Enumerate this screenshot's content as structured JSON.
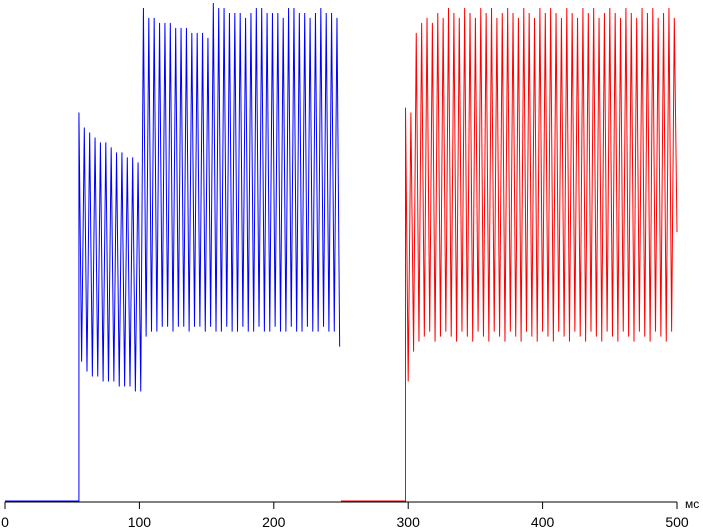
{
  "chart_data": {
    "type": "line",
    "xlabel": "мс",
    "xlim": [
      0,
      500
    ],
    "xticks": [
      0,
      100,
      200,
      300,
      400,
      500
    ],
    "ylim": [
      0,
      100
    ],
    "series": [
      {
        "color": "#0000ff",
        "x": [
          0,
          55,
          55,
          57,
          59,
          61,
          63,
          65,
          67,
          69,
          71,
          73,
          75,
          77,
          79,
          81,
          83,
          85,
          87,
          89,
          91,
          93,
          95,
          97,
          99,
          101,
          103,
          105,
          107,
          109,
          111,
          113,
          115,
          117,
          119,
          121,
          123,
          125,
          127,
          129,
          131,
          133,
          135,
          137,
          139,
          141,
          143,
          145,
          147,
          149,
          151,
          153,
          155,
          157,
          159,
          161,
          163,
          165,
          167,
          169,
          171,
          173,
          175,
          177,
          179,
          181,
          183,
          185,
          187,
          189,
          191,
          193,
          195,
          197,
          199,
          201,
          203,
          205,
          207,
          209,
          211,
          213,
          215,
          217,
          219,
          221,
          223,
          225,
          227,
          229,
          231,
          233,
          235,
          237,
          239,
          241,
          243,
          245,
          247,
          249
        ],
        "values": [
          0,
          0,
          78,
          28,
          75,
          26,
          74,
          25,
          73,
          25,
          72,
          24,
          72,
          24,
          71,
          24,
          70,
          23,
          70,
          23,
          69,
          23,
          69,
          22,
          68,
          22,
          99,
          33,
          97,
          34,
          97,
          34,
          96,
          35,
          96,
          35,
          96,
          34,
          95,
          35,
          95,
          35,
          95,
          34,
          94,
          35,
          94,
          35,
          94,
          34,
          93,
          35,
          100,
          34,
          99,
          34,
          99,
          35,
          98,
          34,
          98,
          34,
          98,
          35,
          97,
          34,
          98,
          34,
          99,
          35,
          99,
          34,
          98,
          34,
          98,
          35,
          98,
          34,
          97,
          34,
          99,
          35,
          99,
          34,
          98,
          34,
          98,
          35,
          97,
          34,
          98,
          34,
          99,
          35,
          98,
          34,
          98,
          34,
          97,
          31
        ]
      },
      {
        "color": "#ff0000",
        "x": [
          250,
          298,
          298,
          300,
          302,
          304,
          306,
          308,
          310,
          312,
          314,
          316,
          318,
          320,
          322,
          324,
          326,
          328,
          330,
          332,
          334,
          336,
          338,
          340,
          342,
          344,
          346,
          348,
          350,
          352,
          354,
          356,
          358,
          360,
          362,
          364,
          366,
          368,
          370,
          372,
          374,
          376,
          378,
          380,
          382,
          384,
          386,
          388,
          390,
          392,
          394,
          396,
          398,
          400,
          402,
          404,
          406,
          408,
          410,
          412,
          414,
          416,
          418,
          420,
          422,
          424,
          426,
          428,
          430,
          432,
          434,
          436,
          438,
          440,
          442,
          444,
          446,
          448,
          450,
          452,
          454,
          456,
          458,
          460,
          462,
          464,
          466,
          468,
          470,
          472,
          474,
          476,
          478,
          480,
          482,
          484,
          486,
          488,
          490,
          492,
          494,
          496,
          498,
          500
        ],
        "values": [
          0,
          0,
          79,
          24,
          78,
          30,
          94,
          32,
          96,
          33,
          97,
          34,
          96,
          32,
          98,
          33,
          97,
          34,
          99,
          33,
          98,
          32,
          97,
          34,
          99,
          33,
          98,
          32,
          97,
          34,
          99,
          33,
          98,
          32,
          99,
          34,
          97,
          33,
          98,
          32,
          99,
          34,
          98,
          33,
          97,
          32,
          99,
          34,
          98,
          33,
          97,
          32,
          99,
          34,
          98,
          33,
          99,
          32,
          98,
          34,
          97,
          33,
          99,
          32,
          98,
          34,
          97,
          33,
          99,
          32,
          98,
          34,
          99,
          33,
          97,
          32,
          98,
          34,
          99,
          33,
          98,
          32,
          97,
          34,
          99,
          33,
          98,
          32,
          97,
          34,
          99,
          33,
          98,
          32,
          99,
          34,
          97,
          33,
          98,
          32,
          99,
          34,
          97,
          54
        ]
      }
    ]
  }
}
